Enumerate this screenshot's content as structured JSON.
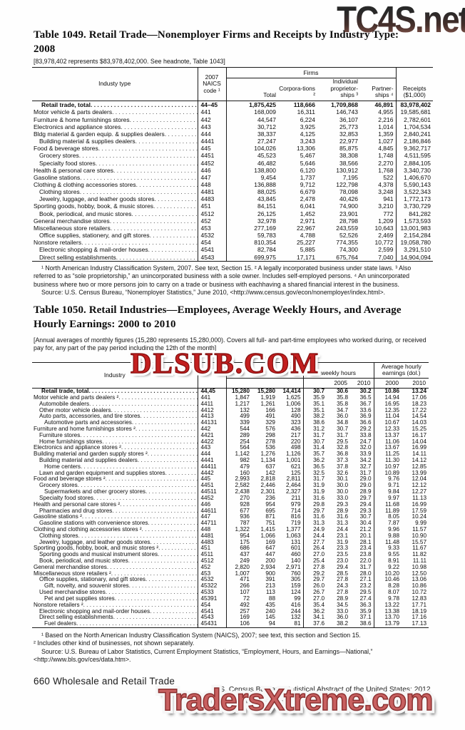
{
  "watermarks": {
    "top": "TC4S.net",
    "middle": "DLSUB.COM",
    "bottom": "TradersXtreme.com"
  },
  "footer": {
    "left": "660  Wholesale and Retail Trade",
    "right": "U.S. Census Bureau, Statistical Abstract of the United States: 2012"
  },
  "table1049": {
    "title": "Table 1049. Retail Trade—Nonemployer Firms and Receipts by Industry Type: 2008",
    "headnote": "[83,978,402 represents $83,978,402,000. See headnote, Table 1043]",
    "columns": {
      "industry": "Industy type",
      "naics": "2007 NAICS code ¹",
      "firms_group": "Firms",
      "total": "Total",
      "corporations": "Corpora-tions ²",
      "proprietorships": "Individual proprietor-ships ³",
      "partnerships": "Partner-ships ⁴",
      "receipts": "Receipts ($1,000)"
    },
    "rows": [
      {
        "label": "Retail trade, total",
        "indent": 0,
        "bold": true,
        "naics": "44–45",
        "values": [
          "1,875,425",
          "118,666",
          "1,709,868",
          "46,891",
          "83,978,402"
        ]
      },
      {
        "label": "Motor vehicle & parts dealers",
        "indent": 0,
        "naics": "441",
        "values": [
          "168,009",
          "16,311",
          "146,743",
          "4,955",
          "19,585,681"
        ]
      },
      {
        "label": "Furniture & home furnishings stores",
        "indent": 0,
        "naics": "442",
        "values": [
          "44,547",
          "6,224",
          "36,107",
          "2,216",
          "2,782,601"
        ]
      },
      {
        "label": "Electronics and appliance stores",
        "indent": 0,
        "naics": "443",
        "values": [
          "30,712",
          "3,925",
          "25,773",
          "1,014",
          "1,704,534"
        ]
      },
      {
        "label": "Bldg material & garden equip. & supplies dealers",
        "indent": 0,
        "naics": "444",
        "values": [
          "38,337",
          "4,125",
          "32,853",
          "1,359",
          "2,840,241"
        ]
      },
      {
        "label": "Building material & supplies dealers",
        "indent": 1,
        "naics": "4441",
        "values": [
          "27,247",
          "3,243",
          "22,977",
          "1,027",
          "2,186,846"
        ]
      },
      {
        "label": "Food & beverage stores",
        "indent": 0,
        "naics": "445",
        "values": [
          "104,026",
          "13,306",
          "85,875",
          "4,845",
          "9,362,717"
        ]
      },
      {
        "label": "Grocery stores",
        "indent": 1,
        "naics": "4451",
        "values": [
          "45,523",
          "5,467",
          "38,308",
          "1,748",
          "4,511,595"
        ]
      },
      {
        "label": "Specialty food stores",
        "indent": 1,
        "naics": "4452",
        "values": [
          "46,482",
          "5,646",
          "38,566",
          "2,270",
          "2,884,105"
        ]
      },
      {
        "label": "Health & personal care stores",
        "indent": 0,
        "naics": "446",
        "values": [
          "138,800",
          "6,120",
          "130,912",
          "1,768",
          "3,340,730"
        ]
      },
      {
        "label": "Gasoline stations",
        "indent": 0,
        "naics": "447",
        "values": [
          "9,454",
          "1,737",
          "7,195",
          "522",
          "1,406,670"
        ]
      },
      {
        "label": "Clothing & clothing accessories stores",
        "indent": 0,
        "naics": "448",
        "values": [
          "136,888",
          "9,712",
          "122,798",
          "4,378",
          "5,590,143"
        ]
      },
      {
        "label": "Clothing stores",
        "indent": 1,
        "naics": "4481",
        "values": [
          "88,025",
          "6,679",
          "78,098",
          "3,248",
          "3,522,343"
        ]
      },
      {
        "label": "Jewelry, luggage, and leather goods stores",
        "indent": 1,
        "naics": "4483",
        "values": [
          "43,845",
          "2,478",
          "40,426",
          "941",
          "1,772,173"
        ]
      },
      {
        "label": "Sporting goods, hobby, book, & music stores",
        "indent": 0,
        "naics": "451",
        "values": [
          "84,151",
          "6,041",
          "74,900",
          "3,210",
          "3,730,729"
        ]
      },
      {
        "label": "Book, periodical, and music stores",
        "indent": 1,
        "naics": "4512",
        "values": [
          "26,125",
          "1,452",
          "23,901",
          "772",
          "841,282"
        ]
      },
      {
        "label": "General merchandise stores",
        "indent": 0,
        "naics": "452",
        "values": [
          "32,978",
          "2,971",
          "28,798",
          "1,209",
          "1,573,593"
        ]
      },
      {
        "label": "Miscellaneous store retailers",
        "indent": 0,
        "naics": "453",
        "values": [
          "277,169",
          "22,967",
          "243,559",
          "10,643",
          "13,001,983"
        ]
      },
      {
        "label": "Office supplies, stationery, and gift stores",
        "indent": 1,
        "naics": "4532",
        "values": [
          "59,783",
          "4,788",
          "52,526",
          "2,469",
          "2,154,284"
        ]
      },
      {
        "label": "Nonstore retailers",
        "indent": 0,
        "naics": "454",
        "values": [
          "810,354",
          "25,227",
          "774,355",
          "10,772",
          "19,058,780"
        ]
      },
      {
        "label": "Electronic shopping & mail-order houses",
        "indent": 1,
        "naics": "4541",
        "values": [
          "82,784",
          "5,885",
          "74,300",
          "2,599",
          "3,291,510"
        ]
      },
      {
        "label": "Direct selling establishments",
        "indent": 1,
        "naics": "4543",
        "values": [
          "699,975",
          "17,171",
          "675,764",
          "7,040",
          "14,904,094"
        ]
      }
    ],
    "footnote": "¹ North American Industry Classification System, 2007. See text, Section 15. ² A legally incorporated business under state laws. ³ Also referred to as “sole proprietorship,” an unincorporated business with a sole owner. Includes self-employed persons. ⁴ An unincorporated business where two or more persons join to carry on a trade or business with eachhaving a shared financial interest in the business.",
    "source": "Source: U.S. Census Bureau, “Nonemployer Statistics,” June 2010, <http://www.census.gov/econ/nonemployer/index.html>."
  },
  "table1050": {
    "title": "Table 1050. Retail Industries—Employees, Average Weekly Hours, and Average Hourly Earnings:  2000 to 2010",
    "headnote": "[Annual averages of monthly figures (15,280 represents 15,280,000). Covers all full- and  part-time employees who worked during, or received pay for, any part of the pay  period including the 12th of the month]",
    "columns": {
      "industry": "Industry",
      "naics": "",
      "employees_group": "",
      "hours_group": "weekly hours",
      "earnings_group": "Average hourly earnings (dol.)",
      "hours_years": [
        "",
        "2005",
        "2010"
      ],
      "earnings_years": [
        "2000",
        "2010"
      ]
    },
    "rows": [
      {
        "label": "Retail trade, total",
        "indent": 0,
        "bold": true,
        "naics": "44,45",
        "values": [
          "15,280",
          "15,280",
          "14,414",
          "30.7",
          "30.6",
          "30.2",
          "10.86",
          "13.24"
        ]
      },
      {
        "label": "Motor vehicle and parts dealers ²",
        "indent": 0,
        "naics": "441",
        "values": [
          "1,847",
          "1,919",
          "1,625",
          "35.9",
          "35.8",
          "36.5",
          "14.94",
          "17.06"
        ]
      },
      {
        "label": "Automobile dealers",
        "indent": 1,
        "naics": "4411",
        "values": [
          "1,217",
          "1,261",
          "1,006",
          "35.1",
          "35.8",
          "36.7",
          "16.95",
          "18.23"
        ]
      },
      {
        "label": "Other motor vehicle dealers",
        "indent": 1,
        "naics": "4412",
        "values": [
          "132",
          "166",
          "128",
          "35.1",
          "34.7",
          "33.6",
          "12.35",
          "17.22"
        ]
      },
      {
        "label": "Auto parts, accessories, and tire stores",
        "indent": 1,
        "naics": "4413",
        "values": [
          "499",
          "491",
          "490",
          "38.2",
          "36.0",
          "36.9",
          "11.04",
          "14.54"
        ]
      },
      {
        "label": "Automotive parts and accessories",
        "indent": 2,
        "naics": "44131",
        "values": [
          "339",
          "329",
          "323",
          "38.6",
          "34.8",
          "36.6",
          "10.67",
          "14.03"
        ]
      },
      {
        "label": "Furniture and home furnishings stores ²",
        "indent": 0,
        "naics": "442",
        "values": [
          "544",
          "576",
          "436",
          "31.2",
          "30.7",
          "29.2",
          "12.33",
          "15.25"
        ]
      },
      {
        "label": "Furniture stores",
        "indent": 1,
        "naics": "4421",
        "values": [
          "289",
          "298",
          "217",
          "31.7",
          "31.7",
          "33.8",
          "13.37",
          "16.17"
        ]
      },
      {
        "label": "Home furnishings stores",
        "indent": 1,
        "naics": "4422",
        "values": [
          "254",
          "278",
          "220",
          "30.7",
          "29.5",
          "24.7",
          "11.06",
          "14.04"
        ]
      },
      {
        "label": "Electronics and appliance stores ²",
        "indent": 0,
        "naics": "443",
        "values": [
          "564",
          "536",
          "498",
          "31.4",
          "32.8",
          "32.0",
          "13.67",
          "16.99"
        ]
      },
      {
        "label": "Building material and garden supply stores ²",
        "indent": 0,
        "naics": "444",
        "values": [
          "1,142",
          "1,276",
          "1,126",
          "35.7",
          "36.8",
          "33.9",
          "11.25",
          "14.11"
        ]
      },
      {
        "label": "Building material and supplies dealers",
        "indent": 1,
        "naics": "4441",
        "values": [
          "982",
          "1,134",
          "1,001",
          "36.2",
          "37.3",
          "34.2",
          "11.30",
          "14.12"
        ]
      },
      {
        "label": "Home centers",
        "indent": 2,
        "naics": "44411",
        "values": [
          "479",
          "637",
          "621",
          "36.5",
          "37.8",
          "32.7",
          "10.97",
          "12.85"
        ]
      },
      {
        "label": "Lawn and garden equipment and supplies stores",
        "indent": 1,
        "naics": "4442",
        "values": [
          "160",
          "142",
          "125",
          "32.5",
          "32.6",
          "31.7",
          "10.89",
          "13.99"
        ]
      },
      {
        "label": "Food and beverage stores ²",
        "indent": 0,
        "naics": "445",
        "values": [
          "2,993",
          "2,818",
          "2,811",
          "31.7",
          "30.1",
          "29.0",
          "9.76",
          "12.04"
        ]
      },
      {
        "label": "Grocery stores",
        "indent": 1,
        "naics": "4451",
        "values": [
          "2,582",
          "2,446",
          "2,464",
          "31.9",
          "30.0",
          "29.0",
          "9.71",
          "12.12"
        ]
      },
      {
        "label": "Supermarkets and other grocery stores",
        "indent": 2,
        "naics": "44511",
        "values": [
          "2,438",
          "2,301",
          "2,327",
          "31.9",
          "30.0",
          "28.9",
          "9.84",
          "12.27"
        ]
      },
      {
        "label": "Specialty food stores",
        "indent": 1,
        "naics": "4452",
        "values": [
          "270",
          "236",
          "211",
          "31.6",
          "33.0",
          "29.7",
          "9.97",
          "11.13"
        ]
      },
      {
        "label": "Health and personal care stores ²",
        "indent": 0,
        "naics": "446",
        "values": [
          "928",
          "954",
          "979",
          "29.8",
          "29.3",
          "29.4",
          "11.68",
          "16.99"
        ]
      },
      {
        "label": "Pharmacies and drug stores",
        "indent": 1,
        "naics": "44611",
        "values": [
          "677",
          "695",
          "714",
          "29.7",
          "28.9",
          "29.3",
          "11.89",
          "17.59"
        ]
      },
      {
        "label": "Gasoline stations ²",
        "indent": 0,
        "naics": "447",
        "values": [
          "936",
          "871",
          "816",
          "31.6",
          "31.6",
          "30.7",
          "8.05",
          "10.24"
        ]
      },
      {
        "label": "Gasoline stations with convenience stores",
        "indent": 1,
        "naics": "44711",
        "values": [
          "787",
          "751",
          "719",
          "31.3",
          "31.3",
          "30.4",
          "7.87",
          "9.99"
        ]
      },
      {
        "label": "Clothing and clothing accessories stores ²",
        "indent": 0,
        "naics": "448",
        "values": [
          "1,322",
          "1,415",
          "1,377",
          "24.9",
          "24.4",
          "21.2",
          "9.96",
          "11.57"
        ]
      },
      {
        "label": "Clothing stores",
        "indent": 1,
        "naics": "4481",
        "values": [
          "954",
          "1,066",
          "1,063",
          "24.4",
          "23.1",
          "20.1",
          "9.88",
          "10.90"
        ]
      },
      {
        "label": "Jewelry, luggage, and leather goods stores",
        "indent": 1,
        "naics": "4483",
        "values": [
          "175",
          "169",
          "131",
          "27.7",
          "31.9",
          "28.1",
          "11.48",
          "15.57"
        ]
      },
      {
        "label": "Sporting goods, hobby, book, and music stores ²",
        "indent": 0,
        "naics": "451",
        "values": [
          "686",
          "647",
          "601",
          "26.4",
          "23.3",
          "23.4",
          "9.33",
          "11.67"
        ]
      },
      {
        "label": "Sporting goods and musical instrument stores",
        "indent": 1,
        "naics": "4511",
        "values": [
          "437",
          "447",
          "460",
          "27.0",
          "23.5",
          "23.8",
          "9.55",
          "11.82"
        ]
      },
      {
        "label": "Book, periodical, and music stores",
        "indent": 1,
        "naics": "4512",
        "values": [
          "249",
          "200",
          "140",
          "25.4",
          "23.0",
          "22.0",
          "8.91",
          "11.11"
        ]
      },
      {
        "label": "General merchandise stores",
        "indent": 0,
        "naics": "452",
        "values": [
          "2,820",
          "2,934",
          "2,971",
          "27.8",
          "29.4",
          "31.7",
          "9.22",
          "10.98"
        ]
      },
      {
        "label": "Miscellaneous store retailers ²",
        "indent": 0,
        "naics": "453",
        "values": [
          "1,007",
          "900",
          "760",
          "29.2",
          "28.5",
          "28.0",
          "10.20",
          "12.50"
        ]
      },
      {
        "label": "Office supplies, stationary, and gift stores",
        "indent": 1,
        "naics": "4532",
        "values": [
          "471",
          "391",
          "305",
          "29.7",
          "27.8",
          "27.1",
          "10.46",
          "13.06"
        ]
      },
      {
        "label": "Gift, novelty, and souvenir stores",
        "indent": 2,
        "naics": "45322",
        "values": [
          "266",
          "213",
          "159",
          "26.0",
          "24.3",
          "23.2",
          "8.28",
          "10.86"
        ]
      },
      {
        "label": "Used merchandise stores",
        "indent": 1,
        "naics": "4533",
        "values": [
          "107",
          "113",
          "124",
          "26.7",
          "27.8",
          "29.5",
          "8.07",
          "10.72"
        ]
      },
      {
        "label": "Pet and pet supplies stores",
        "indent": 2,
        "naics": "45391",
        "values": [
          "72",
          "88",
          "99",
          "27.0",
          "28.9",
          "27.4",
          "9.78",
          "12.83"
        ]
      },
      {
        "label": "Nonstore retailers ²",
        "indent": 0,
        "naics": "454",
        "values": [
          "492",
          "435",
          "416",
          "35.4",
          "34.5",
          "36.3",
          "13.22",
          "17.71"
        ]
      },
      {
        "label": "Electronic shopping and mail-order houses",
        "indent": 1,
        "naics": "4541",
        "values": [
          "257",
          "240",
          "244",
          "36.2",
          "33.0",
          "35.9",
          "13.38",
          "18.19"
        ]
      },
      {
        "label": "Direct selling establishments",
        "indent": 1,
        "naics": "4543",
        "values": [
          "169",
          "145",
          "132",
          "34.1",
          "36.0",
          "37.1",
          "13.70",
          "17.16"
        ]
      },
      {
        "label": "Fuel dealers",
        "indent": 2,
        "naics": "45431",
        "values": [
          "106",
          "94",
          "81",
          "37.6",
          "38.2",
          "38.6",
          "13.79",
          "17.13"
        ]
      }
    ],
    "footnote1": "¹ Based on the North American Industry Classification System (NAICS), 2007;  see text, this section and Section 15.",
    "footnote2": "² Includes other kind of businesses, not shown separately.",
    "source": "Source: U.S. Bureau of Labor Statistics, Current Employment Statistics, “Employment, Hours, and Earnings—National,” <http://www.bls.gov/ces/data.htm>."
  }
}
